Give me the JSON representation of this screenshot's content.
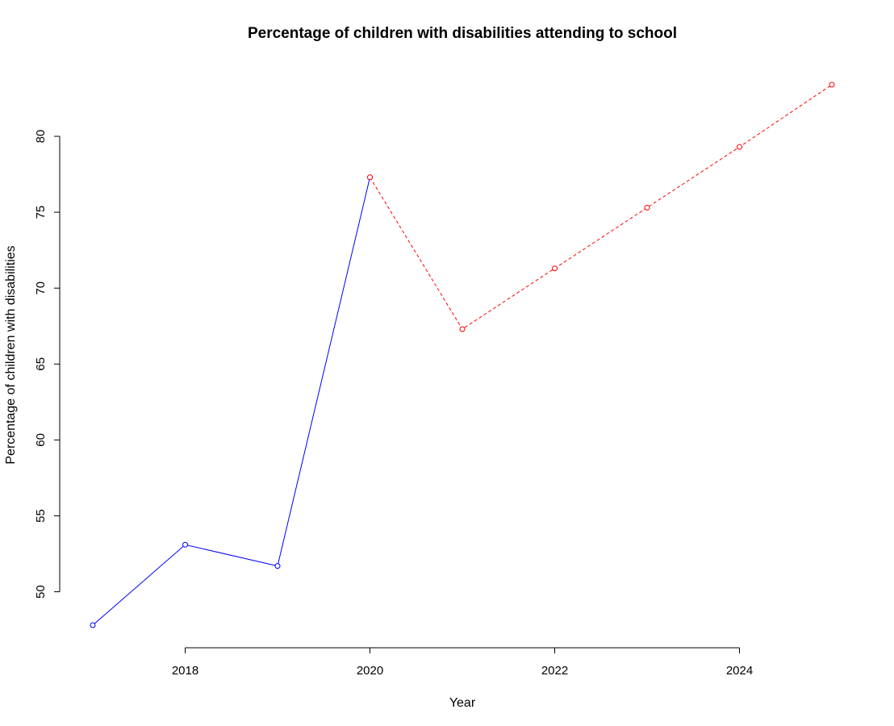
{
  "chart_data": {
    "type": "line",
    "title": "Percentage of children with disabilities attending to school",
    "xlabel": "Year",
    "ylabel": "Percentage of children with disabilities",
    "xlim": [
      2017,
      2025
    ],
    "ylim": [
      47.8,
      83.4
    ],
    "x_ticks": [
      2018,
      2020,
      2022,
      2024
    ],
    "y_ticks": [
      50,
      55,
      60,
      65,
      70,
      75,
      80
    ],
    "grid": false,
    "series": [
      {
        "color": "#0000ff",
        "line_style": "solid",
        "marker": "open-circle",
        "x": [
          2017,
          2018,
          2019,
          2020
        ],
        "y": [
          47.8,
          53.1,
          51.7,
          77.3
        ]
      },
      {
        "color": "#ff0000",
        "line_style": "dashed",
        "marker": "open-circle",
        "x": [
          2020,
          2021,
          2022,
          2023,
          2024,
          2025
        ],
        "y": [
          77.3,
          67.3,
          71.3,
          75.3,
          79.3,
          83.4
        ]
      }
    ]
  }
}
